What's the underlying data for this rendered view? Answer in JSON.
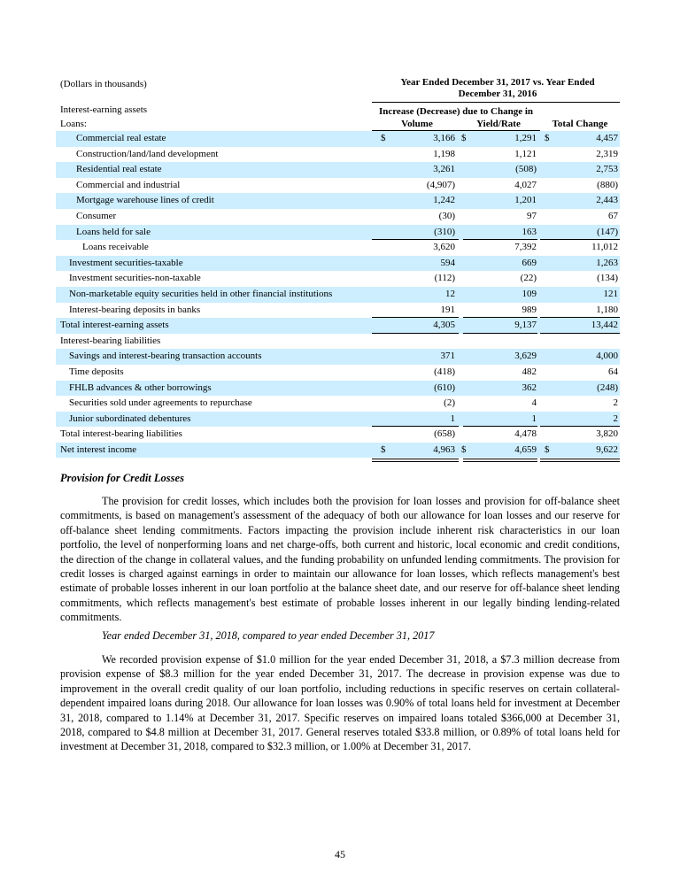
{
  "table": {
    "units": "(Dollars in thousands)",
    "period_header": "Year Ended December 31, 2017 vs. Year Ended December 31, 2016",
    "group_header": "Increase (Decrease) due to Change in",
    "section_assets": "Interest-earning assets",
    "loans_label": "Loans:",
    "columns": [
      "Volume",
      "Yield/Rate",
      "Total Change"
    ],
    "currency": "$",
    "rows": [
      {
        "label": "Commercial real estate",
        "indent": 2,
        "values": [
          "3,166",
          "1,291",
          "4,457"
        ],
        "dollar": true
      },
      {
        "label": "Construction/land/land development",
        "indent": 2,
        "values": [
          "1,198",
          "1,121",
          "2,319"
        ]
      },
      {
        "label": "Residential real estate",
        "indent": 2,
        "values": [
          "3,261",
          "(508)",
          "2,753"
        ]
      },
      {
        "label": "Commercial and industrial",
        "indent": 2,
        "values": [
          "(4,907)",
          "4,027",
          "(880)"
        ]
      },
      {
        "label": "Mortgage warehouse lines of credit",
        "indent": 2,
        "values": [
          "1,242",
          "1,201",
          "2,443"
        ]
      },
      {
        "label": "Consumer",
        "indent": 2,
        "values": [
          "(30)",
          "97",
          "67"
        ]
      },
      {
        "label": "Loans held for sale",
        "indent": 2,
        "values": [
          "(310)",
          "163",
          "(147)"
        ]
      },
      {
        "label": "Loans receivable",
        "indent": 3,
        "values": [
          "3,620",
          "7,392",
          "11,012"
        ]
      },
      {
        "label": "Investment securities-taxable",
        "indent": 1,
        "values": [
          "594",
          "669",
          "1,263"
        ]
      },
      {
        "label": "Investment securities-non-taxable",
        "indent": 1,
        "values": [
          "(112)",
          "(22)",
          "(134)"
        ]
      },
      {
        "label": "Non-marketable equity securities held in other financial institutions",
        "indent": 1,
        "values": [
          "12",
          "109",
          "121"
        ]
      },
      {
        "label": "Interest-bearing deposits in banks",
        "indent": 1,
        "values": [
          "191",
          "989",
          "1,180"
        ]
      },
      {
        "label": "Total interest-earning assets",
        "indent": 0,
        "values": [
          "4,305",
          "9,137",
          "13,442"
        ]
      },
      {
        "label": "Interest-bearing liabilities",
        "indent": 0,
        "values": [
          "",
          "",
          ""
        ]
      },
      {
        "label": "Savings and interest-bearing transaction accounts",
        "indent": 1,
        "values": [
          "371",
          "3,629",
          "4,000"
        ]
      },
      {
        "label": "Time deposits",
        "indent": 1,
        "values": [
          "(418)",
          "482",
          "64"
        ]
      },
      {
        "label": "FHLB advances & other borrowings",
        "indent": 1,
        "values": [
          "(610)",
          "362",
          "(248)"
        ]
      },
      {
        "label": "Securities sold under agreements to repurchase",
        "indent": 1,
        "values": [
          "(2)",
          "4",
          "2"
        ]
      },
      {
        "label": "Junior subordinated debentures",
        "indent": 1,
        "values": [
          "1",
          "1",
          "2"
        ]
      },
      {
        "label": "Total interest-bearing liabilities",
        "indent": 0,
        "values": [
          "(658)",
          "4,478",
          "3,820"
        ]
      },
      {
        "label": "Net interest income",
        "indent": 0,
        "values": [
          "4,963",
          "4,659",
          "9,622"
        ],
        "dollar": true
      }
    ]
  },
  "section_title": "Provision for Credit Losses",
  "paragraph1": "The provision for credit losses, which includes both the provision for loan losses and provision for off-balance sheet commitments, is based on management's assessment of the adequacy of both our allowance for loan losses and our reserve for off-balance sheet lending commitments. Factors impacting the provision include inherent risk characteristics in our loan portfolio, the level of nonperforming loans and net charge-offs, both current and historic, local economic and credit conditions, the direction of the change in collateral values, and the funding probability on unfunded lending commitments. The provision for credit losses is charged against earnings in order to maintain our allowance for loan losses, which reflects management's best estimate of probable losses inherent in our loan portfolio at the balance sheet date, and our reserve for off-balance sheet lending commitments, which reflects management's best estimate of probable losses inherent in our legally binding lending-related commitments.",
  "subheading": "Year ended December 31, 2018, compared to year ended December 31, 2017",
  "paragraph2": "We recorded provision expense of $1.0 million for the year ended December 31, 2018, a $7.3 million decrease from provision expense of $8.3 million for the year ended December 31, 2017. The decrease in provision expense was due to improvement in the overall credit quality of our loan portfolio, including reductions in specific reserves on certain collateral-dependent impaired loans during 2018. Our allowance for loan losses was 0.90% of total loans held for investment at December 31, 2018, compared to 1.14% at December 31, 2017. Specific reserves on impaired loans totaled $366,000 at December 31, 2018, compared to $4.8 million at December 31, 2017. General reserves totaled $33.8 million, or 0.89% of total loans held for investment at December 31, 2018, compared to $32.3 million, or 1.00% at December 31, 2017.",
  "page_number": "45",
  "colors": {
    "row_band": "#cceeff"
  }
}
